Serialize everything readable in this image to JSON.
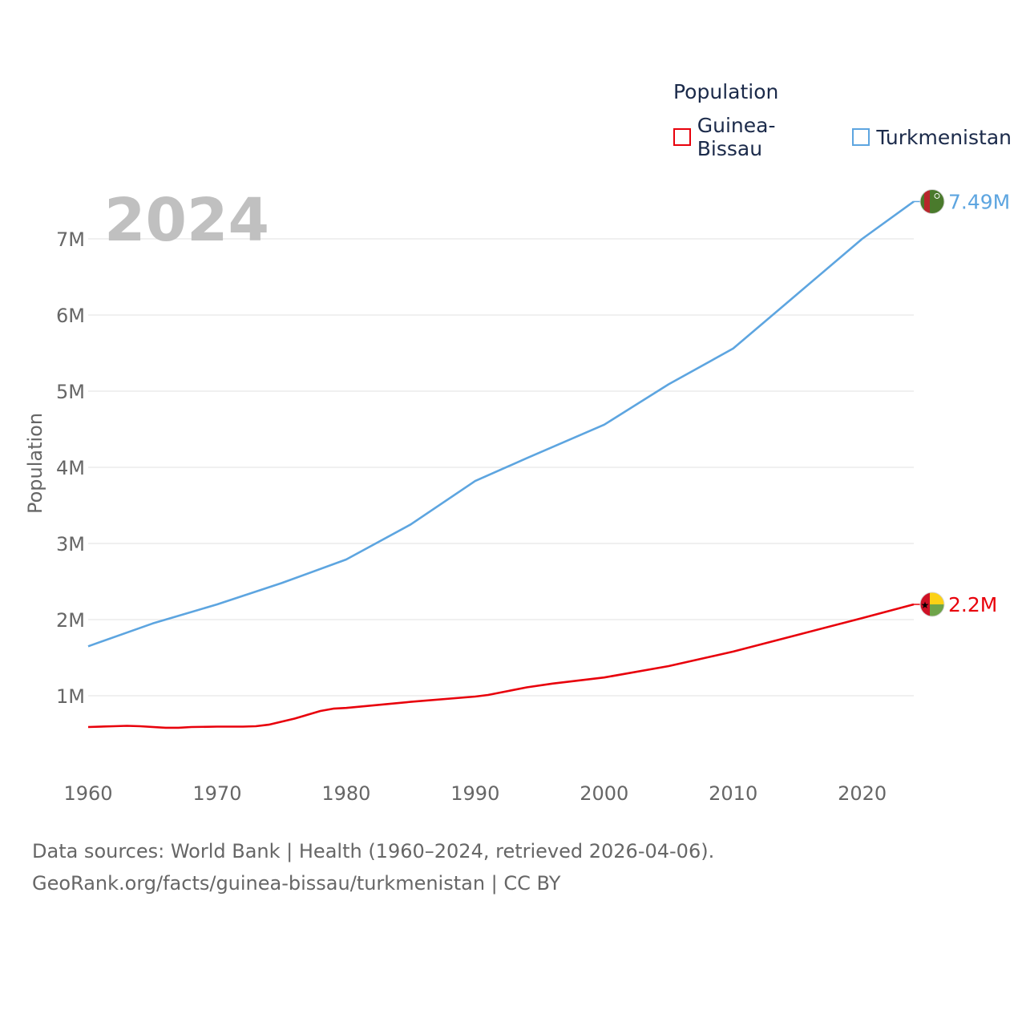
{
  "chart_data": {
    "type": "line",
    "ylabel": "Population",
    "current_year": "2024",
    "legend_title": "Population",
    "ylim": [
      0,
      7800000
    ],
    "xlim": [
      1960,
      2024
    ],
    "yticks": [
      {
        "value": 1000000,
        "label": "1M"
      },
      {
        "value": 2000000,
        "label": "2M"
      },
      {
        "value": 3000000,
        "label": "3M"
      },
      {
        "value": 4000000,
        "label": "4M"
      },
      {
        "value": 5000000,
        "label": "5M"
      },
      {
        "value": 6000000,
        "label": "6M"
      },
      {
        "value": 7000000,
        "label": "7M"
      }
    ],
    "xticks": [
      {
        "value": 1960,
        "label": "1960"
      },
      {
        "value": 1970,
        "label": "1970"
      },
      {
        "value": 1980,
        "label": "1980"
      },
      {
        "value": 1990,
        "label": "1990"
      },
      {
        "value": 2000,
        "label": "2000"
      },
      {
        "value": 2010,
        "label": "2010"
      },
      {
        "value": 2020,
        "label": "2020"
      }
    ],
    "series": [
      {
        "name": "Guinea-Bissau",
        "color": "#e8000b",
        "end_label": "2.2M",
        "flag": "guinea-bissau-flag",
        "x": [
          1960,
          1962,
          1963,
          1964,
          1966,
          1967,
          1968,
          1970,
          1972,
          1973,
          1974,
          1976,
          1978,
          1979,
          1980,
          1985,
          1990,
          1991,
          1994,
          1996,
          2000,
          2005,
          2010,
          2015,
          2020,
          2024
        ],
        "values": [
          590000,
          600000,
          605000,
          600000,
          580000,
          580000,
          590000,
          595000,
          595000,
          600000,
          620000,
          700000,
          800000,
          830000,
          840000,
          920000,
          990000,
          1010000,
          1110000,
          1160000,
          1240000,
          1390000,
          1580000,
          1800000,
          2020000,
          2200000
        ]
      },
      {
        "name": "Turkmenistan",
        "color": "#5da5e0",
        "end_label": "7.49M",
        "flag": "turkmenistan-flag",
        "x": [
          1960,
          1965,
          1970,
          1975,
          1980,
          1985,
          1990,
          1994,
          2000,
          2005,
          2010,
          2015,
          2020,
          2024
        ],
        "values": [
          1650000,
          1950000,
          2200000,
          2480000,
          2790000,
          3250000,
          3820000,
          4120000,
          4560000,
          5090000,
          5560000,
          6280000,
          7000000,
          7490000
        ]
      }
    ]
  },
  "footer": {
    "line1": "Data sources: World Bank | Health (1960–2024, retrieved 2026-04-06).",
    "line2": "GeoRank.org/facts/guinea-bissau/turkmenistan | CC BY"
  }
}
